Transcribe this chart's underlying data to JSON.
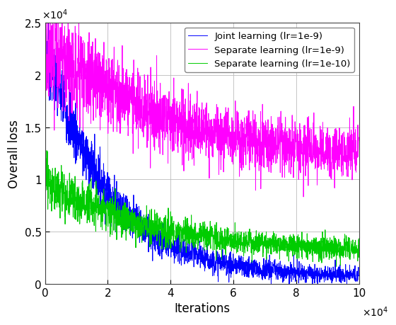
{
  "title": "",
  "xlabel": "Iterations",
  "ylabel": "Overall loss",
  "xlim": [
    0,
    100000
  ],
  "ylim": [
    0,
    25000
  ],
  "xticks": [
    0,
    20000,
    40000,
    60000,
    80000,
    100000
  ],
  "yticks": [
    0,
    5000,
    10000,
    15000,
    20000,
    25000
  ],
  "ytick_labels": [
    "0",
    "0.5",
    "1",
    "1.5",
    "2",
    "2.5"
  ],
  "xtick_labels": [
    "0",
    "2",
    "4",
    "6",
    "8",
    "10"
  ],
  "n_points": 2000,
  "seed": 7,
  "lines": [
    {
      "label": "Joint learning (lr=1e-9)",
      "color": "#0000FF",
      "start": 23000,
      "end": 700,
      "noise_scale_early": 1800,
      "noise_scale_late": 300,
      "decay": 5.0
    },
    {
      "label": "Separate learning (lr=1e-9)",
      "color": "#FF00FF",
      "start": 23000,
      "end": 11500,
      "noise_scale_early": 2500,
      "noise_scale_late": 1200,
      "decay": 2.5
    },
    {
      "label": "Separate learning (lr=1e-10)",
      "color": "#00CC00",
      "start": 10000,
      "end": 3000,
      "noise_scale_early": 1200,
      "noise_scale_late": 500,
      "decay": 3.0
    }
  ],
  "legend_loc": "upper right",
  "legend_fontsize": 9.5,
  "axis_label_fontsize": 12,
  "tick_fontsize": 11,
  "linewidth": 0.7,
  "bg_color": "#FFFFFF",
  "grid_color": "#BBBBBB",
  "grid_linewidth": 0.6
}
